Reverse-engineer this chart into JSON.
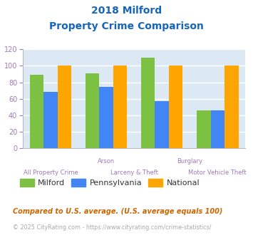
{
  "title_line1": "2018 Milford",
  "title_line2": "Property Crime Comparison",
  "milford": [
    89,
    91,
    110,
    46
  ],
  "pennsylvania": [
    68,
    74,
    57,
    46
  ],
  "national": [
    100,
    100,
    100,
    100
  ],
  "milford_color": "#7dc142",
  "pennsylvania_color": "#4285f4",
  "national_color": "#ffa500",
  "title_color": "#1565c0",
  "axis_label_color": "#9e7bb5",
  "tick_color": "#9e7bb5",
  "plot_bg_color": "#dce9f5",
  "ylim": [
    0,
    120
  ],
  "yticks": [
    0,
    20,
    40,
    60,
    80,
    100,
    120
  ],
  "top_xlabels": [
    [
      "Arson",
      1.0
    ],
    [
      "Burglary",
      2.5
    ]
  ],
  "bottom_xlabels": [
    [
      "All Property Crime",
      0
    ],
    [
      "Larceny & Theft",
      1.5
    ],
    [
      "Motor Vehicle Theft",
      3
    ]
  ],
  "footnote1": "Compared to U.S. average. (U.S. average equals 100)",
  "footnote2": "© 2025 CityRating.com - https://www.cityrating.com/crime-statistics/",
  "footnote1_color": "#cc6600",
  "footnote2_color": "#aaaaaa",
  "footnote2_url_color": "#4285f4",
  "legend_labels": [
    "Milford",
    "Pennsylvania",
    "National"
  ],
  "legend_text_color": "#333333"
}
